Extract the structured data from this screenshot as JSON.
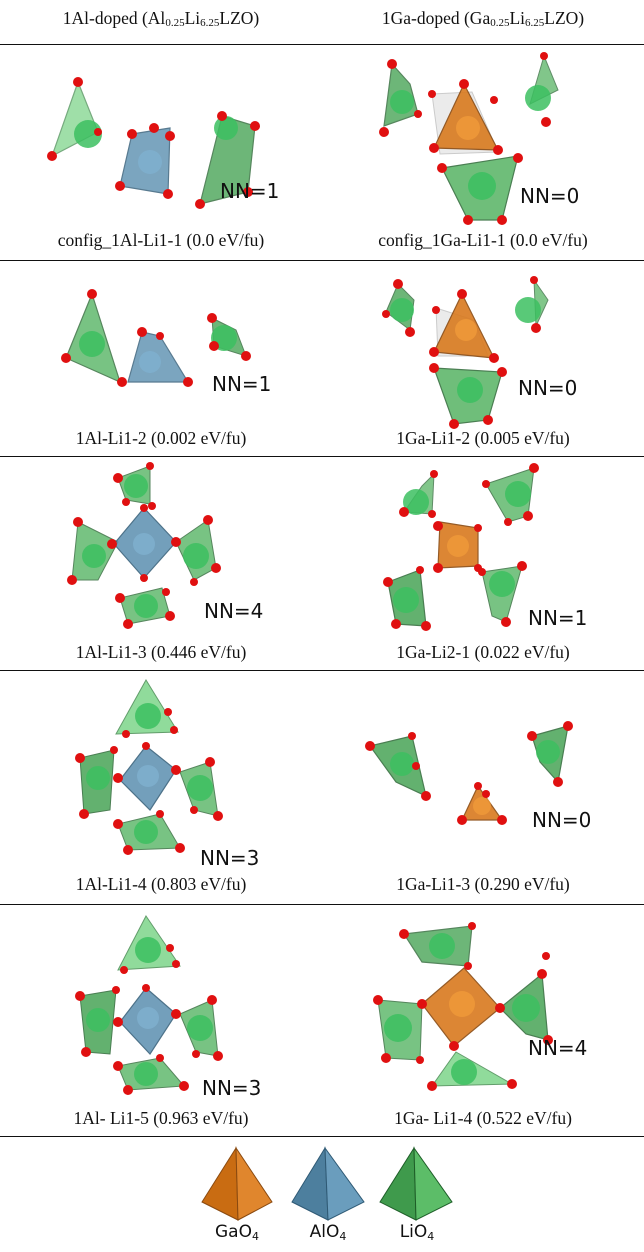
{
  "header": {
    "left_prefix": "1Al-doped (Al",
    "left_sub1": "0.25",
    "left_mid": "Li",
    "left_sub2": "6.25",
    "left_suffix": "LZO)",
    "right_prefix": "1Ga-doped (Ga",
    "right_sub1": "0.25",
    "right_mid": "Li",
    "right_sub2": "6.25",
    "right_suffix": "LZO)"
  },
  "rows": [
    {
      "al": {
        "nn": "NN=1",
        "caption": "config_1Al-Li1-1 (0.0 eV/fu)"
      },
      "ga": {
        "nn": "NN=0",
        "caption": "config_1Ga-Li1-1 (0.0 eV/fu)"
      }
    },
    {
      "al": {
        "nn": "NN=1",
        "caption": "1Al-Li1-2 (0.002 eV/fu)"
      },
      "ga": {
        "nn": "NN=0",
        "caption": "1Ga-Li1-2 (0.005 eV/fu)"
      }
    },
    {
      "al": {
        "nn": "NN=4",
        "caption": "1Al-Li1-3 (0.446 eV/fu)"
      },
      "ga": {
        "nn": "NN=1",
        "caption": "1Ga-Li2-1 (0.022 eV/fu)"
      }
    },
    {
      "al": {
        "nn": "NN=3",
        "caption": "1Al-Li1-4 (0.803 eV/fu)"
      },
      "ga": {
        "nn": "NN=0",
        "caption": "1Ga-Li1-3 (0.290 eV/fu)"
      }
    },
    {
      "al": {
        "nn": "NN=3",
        "caption": "1Al- Li1-5 (0.963 eV/fu)"
      },
      "ga": {
        "nn": "NN=4",
        "caption": "1Ga- Li1-4 (0.522 eV/fu)"
      }
    }
  ],
  "legend": {
    "ga_base": "GaO",
    "ga_sub": "4",
    "al_base": "AlO",
    "al_sub": "4",
    "li_base": "LiO",
    "li_sub": "4"
  },
  "colors": {
    "gao4": "#d97a1f",
    "alo4": "#5b8fb0",
    "lio4": "#4caf5a",
    "oxygen": "#e01010",
    "lithium_sphere": "#3cc060"
  }
}
